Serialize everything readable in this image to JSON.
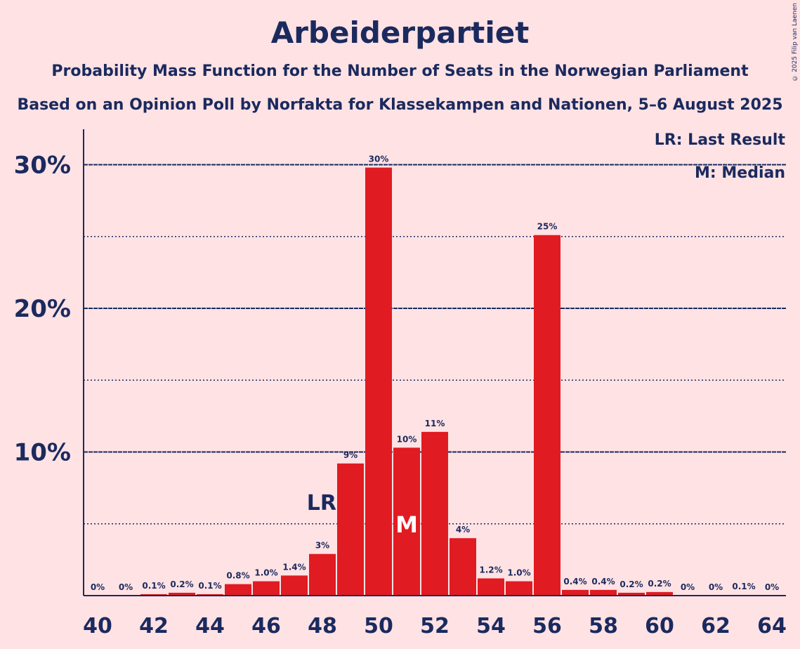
{
  "header": {
    "title": "Arbeiderpartiet",
    "subtitle": "Probability Mass Function for the Number of Seats in the Norwegian Parliament",
    "source": "Based on an Opinion Poll by Norfakta for Klassekampen and Nationen, 5–6 August 2025",
    "copyright": "© 2025 Filip van Laenen"
  },
  "legend": {
    "last_result": "LR: Last Result",
    "median": "M: Median"
  },
  "colors": {
    "bar": "#e11b22",
    "text": "#1b2a5e",
    "background": "#ffe2e4"
  },
  "chart_data": {
    "type": "bar",
    "x": [
      40,
      41,
      42,
      43,
      44,
      45,
      46,
      47,
      48,
      49,
      50,
      51,
      52,
      53,
      54,
      55,
      56,
      57,
      58,
      59,
      60,
      61,
      62,
      63,
      64
    ],
    "values": [
      0,
      0,
      0.1,
      0.2,
      0.1,
      0.8,
      1.0,
      1.4,
      2.9,
      9.2,
      29.8,
      10.3,
      11.4,
      4.0,
      1.2,
      1.0,
      25.1,
      0.4,
      0.4,
      0.2,
      0.25,
      0,
      0,
      0.05,
      0
    ],
    "data_labels": [
      "0%",
      "0%",
      "0.1%",
      "0.2%",
      "0.1%",
      "0.8%",
      "1.0%",
      "1.4%",
      "3%",
      "9%",
      "30%",
      "10%",
      "11%",
      "4%",
      "1.2%",
      "1.0%",
      "25%",
      "0.4%",
      "0.4%",
      "0.2%",
      "0.2%",
      "0%",
      "0%",
      "0.1%",
      "0%"
    ],
    "x_ticks": [
      40,
      42,
      44,
      46,
      48,
      50,
      52,
      54,
      56,
      58,
      60,
      62,
      64
    ],
    "y_ticks": [
      {
        "value": 10,
        "label": "10%"
      },
      {
        "value": 20,
        "label": "20%"
      },
      {
        "value": 30,
        "label": "30%"
      }
    ],
    "y_minor_gridlines": [
      5,
      15,
      25
    ],
    "ylim": [
      0,
      30
    ],
    "last_result": {
      "seat": 48,
      "label": "LR"
    },
    "median": {
      "seat": 51,
      "label": "M"
    },
    "unit": "%",
    "xlabel": "",
    "ylabel": ""
  }
}
